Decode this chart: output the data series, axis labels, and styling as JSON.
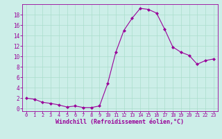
{
  "x": [
    0,
    1,
    2,
    3,
    4,
    5,
    6,
    7,
    8,
    9,
    10,
    11,
    12,
    13,
    14,
    15,
    16,
    17,
    18,
    19,
    20,
    21,
    22,
    23
  ],
  "y": [
    2.0,
    1.8,
    1.2,
    1.0,
    0.7,
    0.3,
    0.5,
    0.2,
    0.2,
    0.5,
    4.8,
    10.8,
    15.0,
    17.3,
    19.2,
    19.0,
    18.3,
    15.2,
    11.8,
    10.8,
    10.2,
    8.5,
    9.2,
    9.5
  ],
  "line_color": "#990099",
  "marker": "D",
  "marker_size": 2.0,
  "bg_color": "#cceee8",
  "grid_color": "#aaddcc",
  "xlabel": "Windchill (Refroidissement éolien,°C)",
  "xlabel_fontsize": 6.0,
  "xtick_fontsize": 5.0,
  "ytick_fontsize": 5.5,
  "ylim": [
    -0.5,
    20.0
  ],
  "xlim": [
    -0.5,
    23.5
  ],
  "yticks": [
    0,
    2,
    4,
    6,
    8,
    10,
    12,
    14,
    16,
    18
  ],
  "xticks": [
    0,
    1,
    2,
    3,
    4,
    5,
    6,
    7,
    8,
    9,
    10,
    11,
    12,
    13,
    14,
    15,
    16,
    17,
    18,
    19,
    20,
    21,
    22,
    23
  ],
  "xtick_labels": [
    "0",
    "1",
    "2",
    "3",
    "4",
    "5",
    "6",
    "7",
    "8",
    "9",
    "10",
    "11",
    "12",
    "13",
    "14",
    "15",
    "16",
    "17",
    "18",
    "19",
    "20",
    "21",
    "22",
    "23"
  ]
}
